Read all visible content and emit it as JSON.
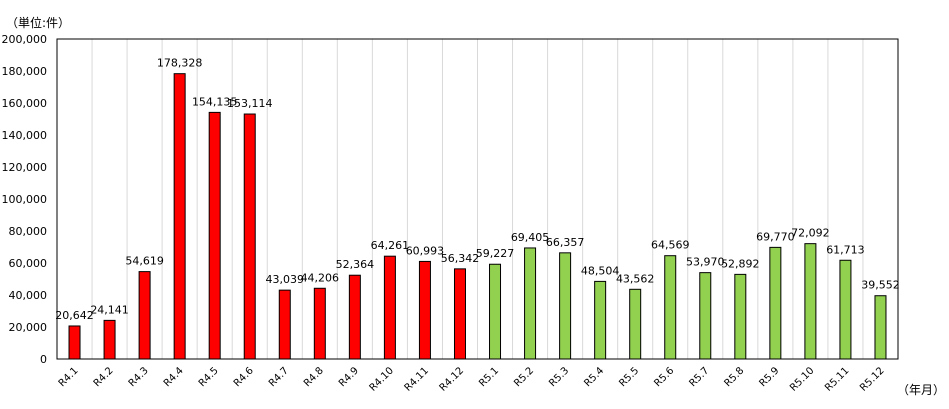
{
  "chart_data": {
    "type": "bar",
    "y_unit_label": "（単位:件）",
    "x_unit_label": "（年月）",
    "categories": [
      "R4.1",
      "R4.2",
      "R4.3",
      "R4.4",
      "R4.5",
      "R4.6",
      "R4.7",
      "R4.8",
      "R4.9",
      "R4.10",
      "R4.11",
      "R4.12",
      "R5.1",
      "R5.2",
      "R5.3",
      "R5.4",
      "R5.5",
      "R5.6",
      "R5.7",
      "R5.8",
      "R5.9",
      "R5.10",
      "R5.11",
      "R5.12"
    ],
    "values": [
      20642,
      24141,
      54619,
      178328,
      154135,
      153114,
      43039,
      44206,
      52364,
      64261,
      60993,
      56342,
      59227,
      69405,
      66357,
      48504,
      43562,
      64569,
      53970,
      52892,
      69770,
      72092,
      61713,
      39552
    ],
    "value_labels": [
      "20,642",
      "24,141",
      "54,619",
      "178,328",
      "154,135",
      "153,114",
      "43,039",
      "44,206",
      "52,364",
      "64,261",
      "60,993",
      "56,342",
      "59,227",
      "69,405",
      "66,357",
      "48,504",
      "43,562",
      "64,569",
      "53,970",
      "52,892",
      "69,770",
      "72,092",
      "61,713",
      "39,552"
    ],
    "bar_colors": [
      "#ff0000",
      "#ff0000",
      "#ff0000",
      "#ff0000",
      "#ff0000",
      "#ff0000",
      "#ff0000",
      "#ff0000",
      "#ff0000",
      "#ff0000",
      "#ff0000",
      "#ff0000",
      "#92d050",
      "#92d050",
      "#92d050",
      "#92d050",
      "#92d050",
      "#92d050",
      "#92d050",
      "#92d050",
      "#92d050",
      "#92d050",
      "#92d050",
      "#92d050"
    ],
    "ylim": [
      0,
      200000
    ],
    "yticks": [
      0,
      20000,
      40000,
      60000,
      80000,
      100000,
      120000,
      140000,
      160000,
      180000,
      200000
    ],
    "ytick_labels": [
      "0",
      "20,000",
      "40,000",
      "60,000",
      "80,000",
      "100,000",
      "120,000",
      "140,000",
      "160,000",
      "180,000",
      "200,000"
    ],
    "grid": "vertical",
    "legend": "none"
  }
}
